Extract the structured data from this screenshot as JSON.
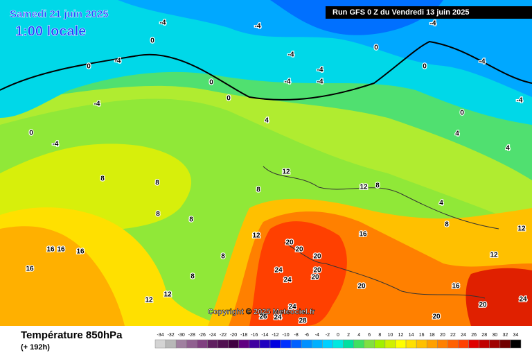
{
  "map": {
    "date": "Samedi 21 juin 2025",
    "time": "1:00 locale",
    "run": "Run GFS 0 Z du Vendredi 13 juin 2025",
    "copyright": "Copyright © 2025 Meteociel.fr",
    "variable": "Température 850hPa",
    "lead": "(+ 192h)",
    "contour_labels": [
      -4,
      -4,
      -4,
      0,
      0,
      0,
      0,
      0,
      -4,
      -4,
      -4,
      -4,
      -4,
      -4,
      -4,
      -4,
      0,
      0,
      0,
      -4,
      4,
      4,
      4,
      4,
      8,
      8,
      8,
      8,
      8,
      8,
      8,
      8,
      8,
      12,
      12,
      12,
      12,
      12,
      12,
      12,
      16,
      16,
      16,
      16,
      16,
      16,
      20,
      20,
      20,
      20,
      20,
      20,
      20,
      20,
      24,
      24,
      24,
      24,
      28,
      26,
      24
    ],
    "legend": {
      "ticks": [
        -34,
        -32,
        -30,
        -28,
        -26,
        -24,
        -22,
        -20,
        -18,
        -16,
        -14,
        -12,
        -10,
        -8,
        -6,
        -4,
        -2,
        0,
        2,
        4,
        6,
        8,
        10,
        12,
        14,
        16,
        18,
        20,
        22,
        24,
        26,
        28,
        30,
        32,
        34
      ],
      "colors": [
        "#d4d4d4",
        "#b8b8b8",
        "#a080a0",
        "#906090",
        "#804080",
        "#602060",
        "#501050",
        "#400040",
        "#600080",
        "#4000a0",
        "#2000c0",
        "#0000e0",
        "#0030ff",
        "#0060ff",
        "#0090ff",
        "#00b0ff",
        "#00d0ff",
        "#00e8e0",
        "#00e0a0",
        "#40e060",
        "#80e040",
        "#a0f000",
        "#d0f000",
        "#ffff00",
        "#ffe000",
        "#ffc000",
        "#ffa000",
        "#ff8000",
        "#ff6000",
        "#ff4000",
        "#e00000",
        "#c00000",
        "#a00000",
        "#700000",
        "#000000"
      ]
    }
  }
}
